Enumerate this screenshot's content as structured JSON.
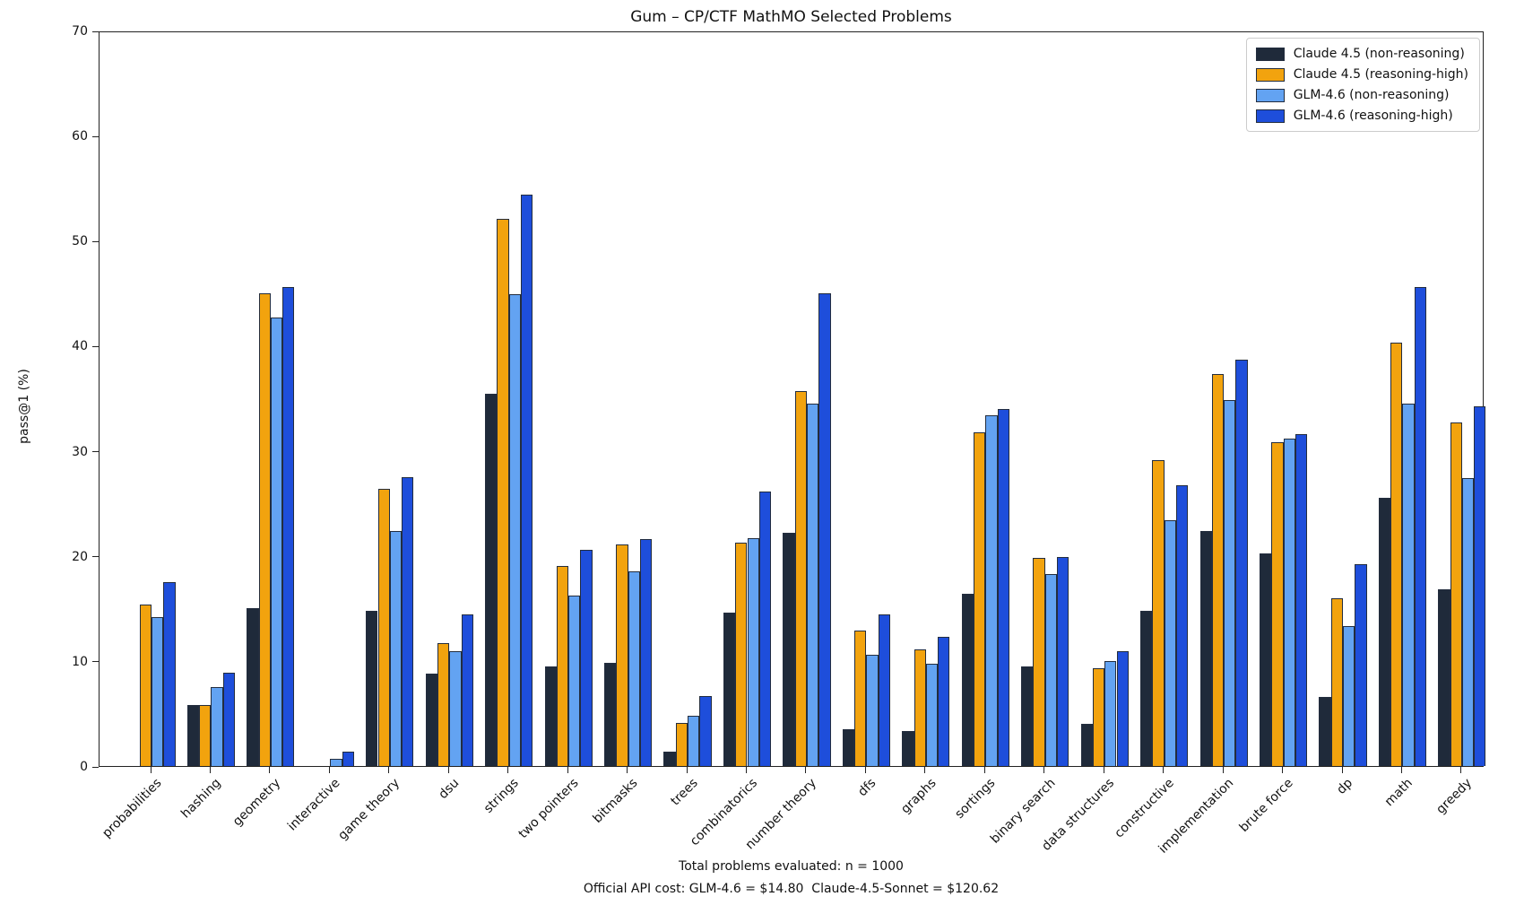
{
  "title": "Gum – CP/CTF MathMO Selected Problems",
  "ylabel": "pass@1 (%)",
  "footer": {
    "line1": "Total problems evaluated: n = 1000",
    "line2": "Official API cost: GLM-4.6 = $14.80  Claude-4.5-Sonnet = $120.62"
  },
  "colors": {
    "axis": "#222222",
    "bar_edge": "#232D3E",
    "legend_border": "#cccccc",
    "background": "#ffffff"
  },
  "chart_data": {
    "type": "bar",
    "title": "Gum – CP/CTF MathMO Selected Problems",
    "xlabel": "",
    "ylabel": "pass@1 (%)",
    "ylim": [
      0,
      70
    ],
    "yticks": [
      0,
      10,
      20,
      30,
      40,
      50,
      60,
      70
    ],
    "grid": false,
    "legend_position": "upper right",
    "categories": [
      "probabilities",
      "hashing",
      "geometry",
      "interactive",
      "game theory",
      "dsu",
      "strings",
      "two pointers",
      "bitmasks",
      "trees",
      "combinatorics",
      "number theory",
      "dfs",
      "graphs",
      "sortings",
      "binary search",
      "data structures",
      "constructive",
      "implementation",
      "brute force",
      "dp",
      "math",
      "greedy"
    ],
    "series": [
      {
        "name": "Claude 4.5 (non-reasoning)",
        "color": "#1F2A3A",
        "values": [
          0,
          5.8,
          15.0,
          0,
          14.8,
          8.8,
          35.4,
          9.5,
          9.8,
          1.4,
          14.6,
          22.2,
          3.5,
          3.3,
          16.4,
          9.5,
          4.0,
          14.8,
          22.4,
          20.2,
          6.6,
          25.5,
          16.8
        ]
      },
      {
        "name": "Claude 4.5 (reasoning-high)",
        "color": "#F2A30E",
        "values": [
          15.4,
          5.8,
          45.0,
          0,
          26.4,
          11.7,
          52.1,
          19.0,
          21.1,
          4.1,
          21.3,
          35.7,
          12.9,
          11.1,
          31.8,
          19.8,
          9.3,
          29.1,
          37.3,
          30.8,
          16.0,
          40.3,
          32.7
        ]
      },
      {
        "name": "GLM-4.6 (non-reasoning)",
        "color": "#63A3F2",
        "values": [
          14.2,
          7.5,
          42.7,
          0.7,
          22.4,
          10.9,
          44.9,
          16.2,
          18.5,
          4.8,
          21.7,
          34.5,
          10.6,
          9.7,
          33.4,
          18.3,
          10.0,
          23.4,
          34.8,
          31.2,
          13.3,
          34.5,
          27.4
        ]
      },
      {
        "name": "GLM-4.6 (reasoning-high)",
        "color": "#1E4EDB",
        "values": [
          17.5,
          8.9,
          45.6,
          1.4,
          27.5,
          14.4,
          54.4,
          20.6,
          21.6,
          6.7,
          26.1,
          45.0,
          14.4,
          12.3,
          34.0,
          19.9,
          10.9,
          26.7,
          38.7,
          31.6,
          19.2,
          45.6,
          34.2
        ]
      }
    ]
  }
}
